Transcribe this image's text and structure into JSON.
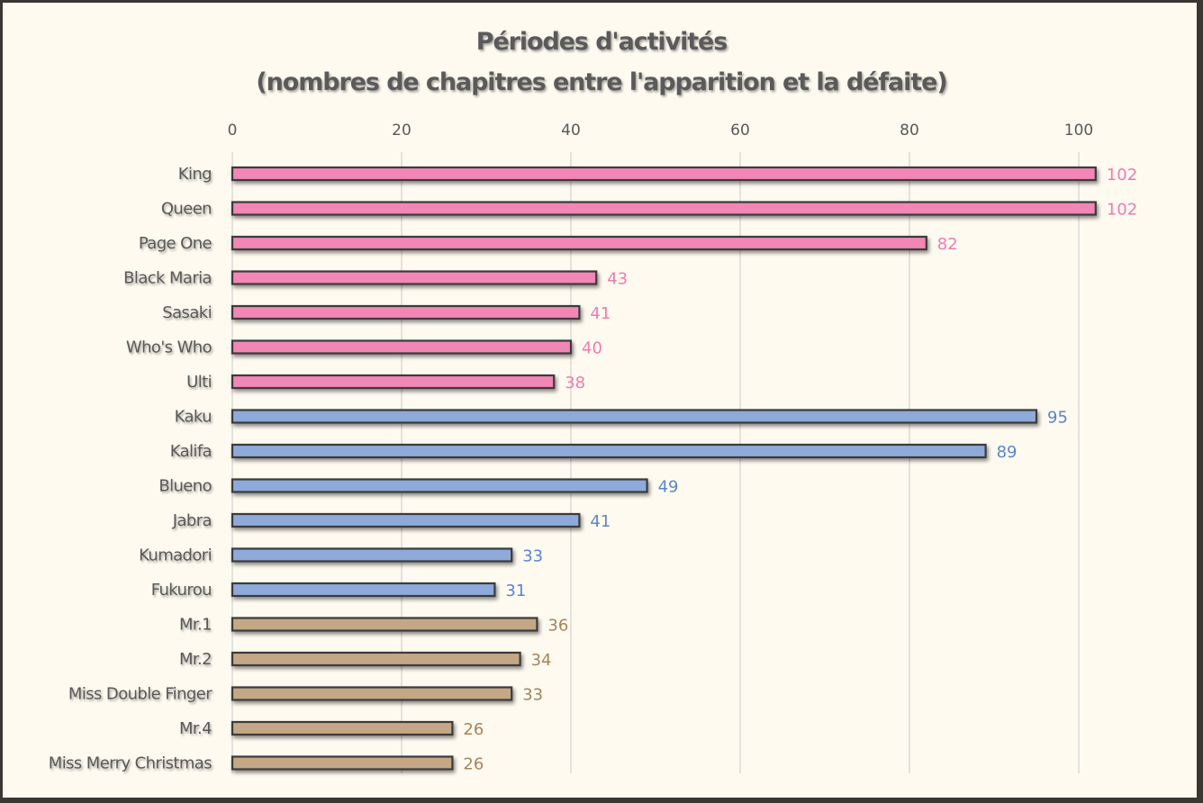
{
  "chart_data": {
    "type": "bar",
    "orientation": "horizontal",
    "title": "Périodes d'activités",
    "subtitle": "(nombres de chapitres entre l'apparition et la défaite)",
    "xlabel": "",
    "ylabel": "",
    "xlim": [
      0,
      100
    ],
    "x_ticks": [
      "0",
      "20",
      "40",
      "60",
      "80",
      "100"
    ],
    "x_axis_position": "top",
    "grid": true,
    "legend": "none",
    "colors": {
      "pink": "#f286b4",
      "blue": "#8eaadb",
      "brown": "#c4a784",
      "pink_label": "#f07bb0",
      "blue_label": "#5b85d1",
      "brown_label": "#a8835a",
      "bar_outline": "#3a3a3a",
      "grid": "#d9d9d9",
      "background": "#fefaf0"
    },
    "categories": [
      "King",
      "Queen",
      "Page One",
      "Black Maria",
      "Sasaki",
      "Who's Who",
      "Ulti",
      "Kaku",
      "Kalifa",
      "Blueno",
      "Jabra",
      "Kumadori",
      "Fukurou",
      "Mr.1",
      "Mr.2",
      "Miss Double Finger",
      "Mr.4",
      "Miss Merry Christmas"
    ],
    "values": [
      102,
      102,
      82,
      43,
      41,
      40,
      38,
      95,
      89,
      49,
      41,
      33,
      31,
      36,
      34,
      33,
      26,
      26
    ],
    "value_labels": [
      "102",
      "102",
      "82",
      "43",
      "41",
      "40",
      "38",
      "95",
      "89",
      "49",
      "41",
      "33",
      "31",
      "36",
      "34",
      "33",
      "26",
      "26"
    ],
    "groups": [
      "pink",
      "pink",
      "pink",
      "pink",
      "pink",
      "pink",
      "pink",
      "blue",
      "blue",
      "blue",
      "blue",
      "blue",
      "blue",
      "brown",
      "brown",
      "brown",
      "brown",
      "brown"
    ]
  }
}
